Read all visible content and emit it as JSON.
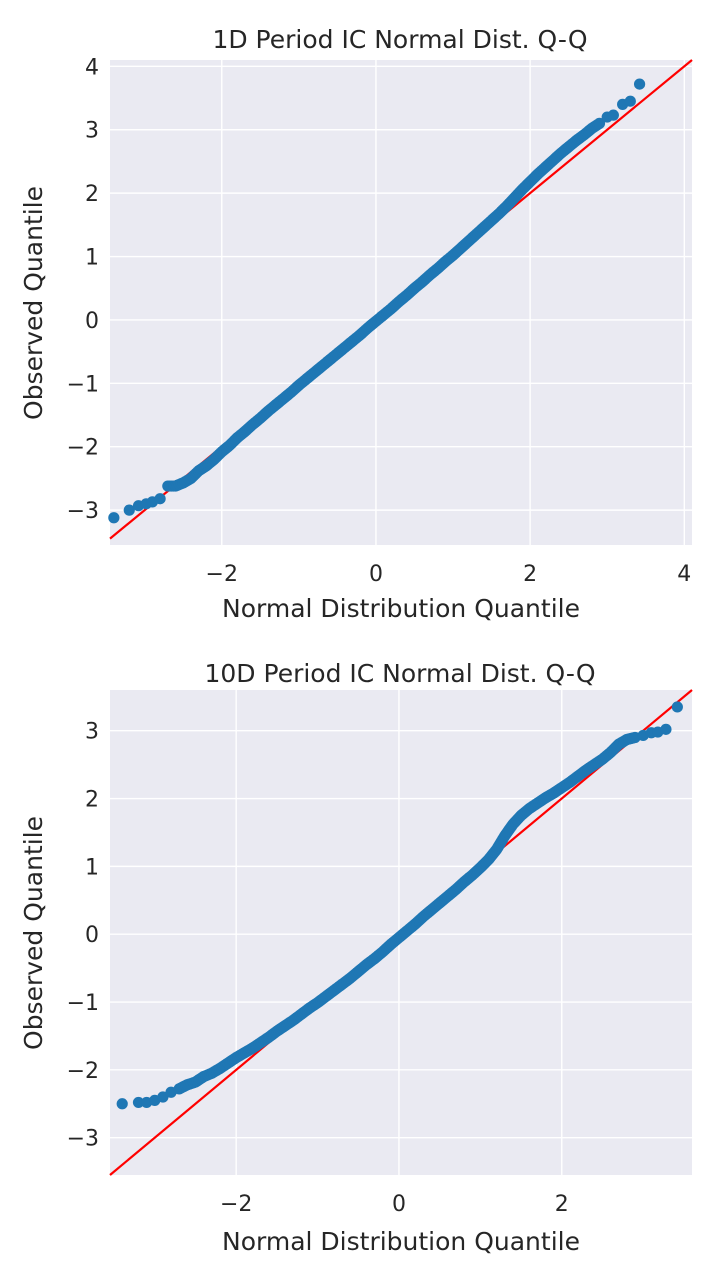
{
  "colors": {
    "point": "#1f77b4",
    "reference_line": "#ff0000",
    "plot_background": "#eaeaf2",
    "grid": "#ffffff",
    "text": "#262626"
  },
  "chart_data": [
    {
      "type": "scatter",
      "title": "1D Period IC Normal Dist. Q-Q",
      "xlabel": "Normal Distribution Quantile",
      "ylabel": "Observed Quantile",
      "xlim": [
        -3.45,
        4.1
      ],
      "ylim": [
        -3.55,
        4.1
      ],
      "xticks": [
        -2,
        0,
        2,
        4
      ],
      "yticks": [
        -3,
        -2,
        -1,
        0,
        1,
        2,
        3,
        4
      ],
      "grid": true,
      "reference_line": {
        "label": "",
        "slope": 1,
        "intercept": 0
      },
      "series": [
        {
          "points": [
            [
              -3.4,
              -3.12
            ],
            [
              -3.2,
              -3.0
            ],
            [
              -3.08,
              -2.93
            ],
            [
              -2.98,
              -2.9
            ],
            [
              -2.9,
              -2.87
            ],
            [
              -2.8,
              -2.82
            ],
            [
              -2.7,
              -2.62
            ],
            [
              -2.6,
              -2.62
            ],
            [
              -2.5,
              -2.57
            ],
            [
              -2.4,
              -2.5
            ],
            [
              -2.3,
              -2.38
            ],
            [
              -2.2,
              -2.3
            ],
            [
              -2.1,
              -2.2
            ],
            [
              -2.0,
              -2.08
            ],
            [
              -1.9,
              -1.98
            ],
            [
              -1.8,
              -1.86
            ],
            [
              -1.7,
              -1.76
            ],
            [
              -1.6,
              -1.65
            ],
            [
              -1.5,
              -1.55
            ],
            [
              -1.4,
              -1.44
            ],
            [
              -1.3,
              -1.34
            ],
            [
              -1.2,
              -1.24
            ],
            [
              -1.1,
              -1.14
            ],
            [
              -1.0,
              -1.03
            ],
            [
              -0.9,
              -0.93
            ],
            [
              -0.8,
              -0.83
            ],
            [
              -0.7,
              -0.73
            ],
            [
              -0.6,
              -0.63
            ],
            [
              -0.5,
              -0.53
            ],
            [
              -0.4,
              -0.43
            ],
            [
              -0.3,
              -0.33
            ],
            [
              -0.2,
              -0.23
            ],
            [
              -0.1,
              -0.12
            ],
            [
              0.0,
              -0.02
            ],
            [
              0.1,
              0.08
            ],
            [
              0.2,
              0.18
            ],
            [
              0.3,
              0.29
            ],
            [
              0.4,
              0.39
            ],
            [
              0.5,
              0.5
            ],
            [
              0.6,
              0.6
            ],
            [
              0.7,
              0.71
            ],
            [
              0.8,
              0.81
            ],
            [
              0.9,
              0.92
            ],
            [
              1.0,
              1.02
            ],
            [
              1.1,
              1.13
            ],
            [
              1.2,
              1.24
            ],
            [
              1.3,
              1.35
            ],
            [
              1.4,
              1.46
            ],
            [
              1.5,
              1.57
            ],
            [
              1.6,
              1.68
            ],
            [
              1.7,
              1.8
            ],
            [
              1.8,
              1.93
            ],
            [
              1.9,
              2.06
            ],
            [
              2.0,
              2.18
            ],
            [
              2.1,
              2.3
            ],
            [
              2.2,
              2.41
            ],
            [
              2.3,
              2.52
            ],
            [
              2.4,
              2.63
            ],
            [
              2.5,
              2.73
            ],
            [
              2.6,
              2.83
            ],
            [
              2.7,
              2.92
            ],
            [
              2.8,
              3.02
            ],
            [
              2.9,
              3.1
            ],
            [
              3.0,
              3.2
            ],
            [
              3.08,
              3.23
            ],
            [
              3.2,
              3.4
            ],
            [
              3.3,
              3.45
            ],
            [
              3.42,
              3.72
            ]
          ]
        }
      ]
    },
    {
      "type": "scatter",
      "title": "10D Period IC Normal Dist. Q-Q",
      "xlabel": "Normal Distribution Quantile",
      "ylabel": "Observed Quantile",
      "xlim": [
        -3.55,
        3.6
      ],
      "ylim": [
        -3.55,
        3.6
      ],
      "xticks": [
        -2,
        0,
        2
      ],
      "yticks": [
        -3,
        -2,
        -1,
        0,
        1,
        2,
        3
      ],
      "grid": true,
      "reference_line": {
        "label": "",
        "slope": 1,
        "intercept": 0
      },
      "series": [
        {
          "points": [
            [
              -3.4,
              -2.5
            ],
            [
              -3.2,
              -2.48
            ],
            [
              -3.1,
              -2.48
            ],
            [
              -3.0,
              -2.45
            ],
            [
              -2.9,
              -2.4
            ],
            [
              -2.8,
              -2.33
            ],
            [
              -2.7,
              -2.28
            ],
            [
              -2.6,
              -2.22
            ],
            [
              -2.5,
              -2.18
            ],
            [
              -2.4,
              -2.1
            ],
            [
              -2.3,
              -2.05
            ],
            [
              -2.2,
              -1.98
            ],
            [
              -2.1,
              -1.9
            ],
            [
              -2.0,
              -1.82
            ],
            [
              -1.9,
              -1.75
            ],
            [
              -1.8,
              -1.68
            ],
            [
              -1.7,
              -1.6
            ],
            [
              -1.6,
              -1.52
            ],
            [
              -1.5,
              -1.43
            ],
            [
              -1.4,
              -1.35
            ],
            [
              -1.3,
              -1.27
            ],
            [
              -1.2,
              -1.18
            ],
            [
              -1.1,
              -1.09
            ],
            [
              -1.0,
              -1.01
            ],
            [
              -0.9,
              -0.92
            ],
            [
              -0.8,
              -0.83
            ],
            [
              -0.7,
              -0.74
            ],
            [
              -0.6,
              -0.65
            ],
            [
              -0.5,
              -0.55
            ],
            [
              -0.4,
              -0.45
            ],
            [
              -0.3,
              -0.36
            ],
            [
              -0.2,
              -0.26
            ],
            [
              -0.1,
              -0.15
            ],
            [
              0.0,
              -0.05
            ],
            [
              0.1,
              0.05
            ],
            [
              0.2,
              0.15
            ],
            [
              0.3,
              0.26
            ],
            [
              0.4,
              0.36
            ],
            [
              0.5,
              0.46
            ],
            [
              0.6,
              0.56
            ],
            [
              0.7,
              0.66
            ],
            [
              0.8,
              0.77
            ],
            [
              0.9,
              0.87
            ],
            [
              1.0,
              0.98
            ],
            [
              1.1,
              1.1
            ],
            [
              1.2,
              1.25
            ],
            [
              1.3,
              1.45
            ],
            [
              1.4,
              1.62
            ],
            [
              1.5,
              1.75
            ],
            [
              1.6,
              1.85
            ],
            [
              1.7,
              1.93
            ],
            [
              1.8,
              2.01
            ],
            [
              1.9,
              2.08
            ],
            [
              2.0,
              2.16
            ],
            [
              2.1,
              2.24
            ],
            [
              2.2,
              2.33
            ],
            [
              2.3,
              2.42
            ],
            [
              2.4,
              2.5
            ],
            [
              2.5,
              2.58
            ],
            [
              2.6,
              2.68
            ],
            [
              2.7,
              2.8
            ],
            [
              2.8,
              2.87
            ],
            [
              2.9,
              2.9
            ],
            [
              3.0,
              2.93
            ],
            [
              3.1,
              2.97
            ],
            [
              3.18,
              2.98
            ],
            [
              3.28,
              3.02
            ],
            [
              3.42,
              3.35
            ]
          ]
        }
      ]
    }
  ]
}
